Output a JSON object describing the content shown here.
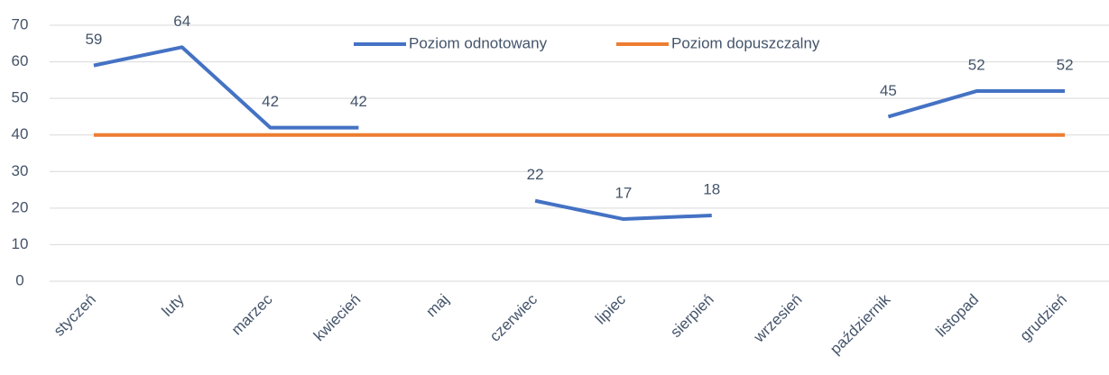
{
  "chart_data": {
    "type": "line",
    "categories": [
      "styczeń",
      "luty",
      "marzec",
      "kwiecień",
      "maj",
      "czerwiec",
      "lipiec",
      "sierpień",
      "wrzesień",
      "październik",
      "listopad",
      "grudzień"
    ],
    "series": [
      {
        "name": "Poziom odnotowany",
        "color": "#4472c4",
        "values": [
          59,
          64,
          42,
          42,
          null,
          22,
          17,
          18,
          null,
          45,
          52,
          52
        ],
        "data_labels": true
      },
      {
        "name": "Poziom dopuszczalny",
        "color": "#ed7d31",
        "values": [
          40,
          40,
          40,
          40,
          40,
          40,
          40,
          40,
          40,
          40,
          40,
          40
        ],
        "data_labels": false
      }
    ],
    "ylim": [
      0,
      70
    ],
    "yticks": [
      0,
      10,
      20,
      30,
      40,
      50,
      60,
      70
    ],
    "grid": true,
    "legend": "top"
  }
}
